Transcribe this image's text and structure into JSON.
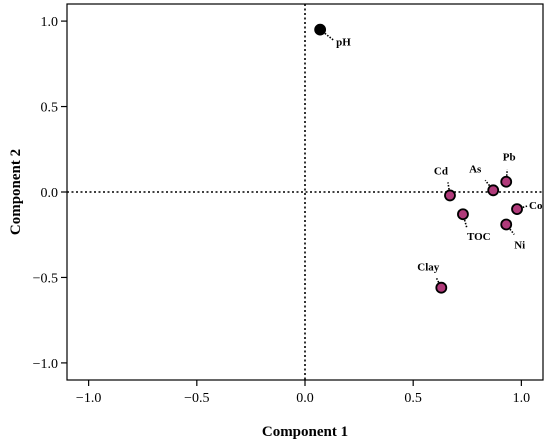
{
  "chart_data": {
    "type": "scatter",
    "title": "",
    "xlabel": "Component 1",
    "ylabel": "Component 2",
    "xlim": [
      -1.1,
      1.1
    ],
    "ylim": [
      -1.1,
      1.1
    ],
    "xticks": [
      -1.0,
      -0.5,
      0.0,
      0.5,
      1.0
    ],
    "yticks": [
      -1.0,
      -0.5,
      0.0,
      0.5,
      1.0
    ],
    "xtick_labels": [
      "−1.0",
      "−0.5",
      "0.0",
      "0.5",
      "1.0"
    ],
    "ytick_labels": [
      "−1.0",
      "−0.5",
      "0.0",
      "0.5",
      "1.0"
    ],
    "reference_lines": {
      "x": 0,
      "y": 0,
      "style": "dotted"
    },
    "grid": false,
    "colors": {
      "ph_point": "#000000",
      "other_points": "#b03a7a",
      "point_edge": "#000000"
    },
    "points": [
      {
        "label": "pH",
        "x": 0.07,
        "y": 0.95,
        "color": "#000000"
      },
      {
        "label": "Cd",
        "x": 0.67,
        "y": -0.02,
        "color": "#b03a7a"
      },
      {
        "label": "As",
        "x": 0.87,
        "y": 0.01,
        "color": "#b03a7a"
      },
      {
        "label": "Pb",
        "x": 0.93,
        "y": 0.06,
        "color": "#b03a7a"
      },
      {
        "label": "Co",
        "x": 0.98,
        "y": -0.1,
        "color": "#b03a7a"
      },
      {
        "label": "TOC",
        "x": 0.73,
        "y": -0.13,
        "color": "#b03a7a"
      },
      {
        "label": "Ni",
        "x": 0.93,
        "y": -0.19,
        "color": "#b03a7a"
      },
      {
        "label": "Clay",
        "x": 0.63,
        "y": -0.56,
        "color": "#b03a7a"
      }
    ]
  }
}
